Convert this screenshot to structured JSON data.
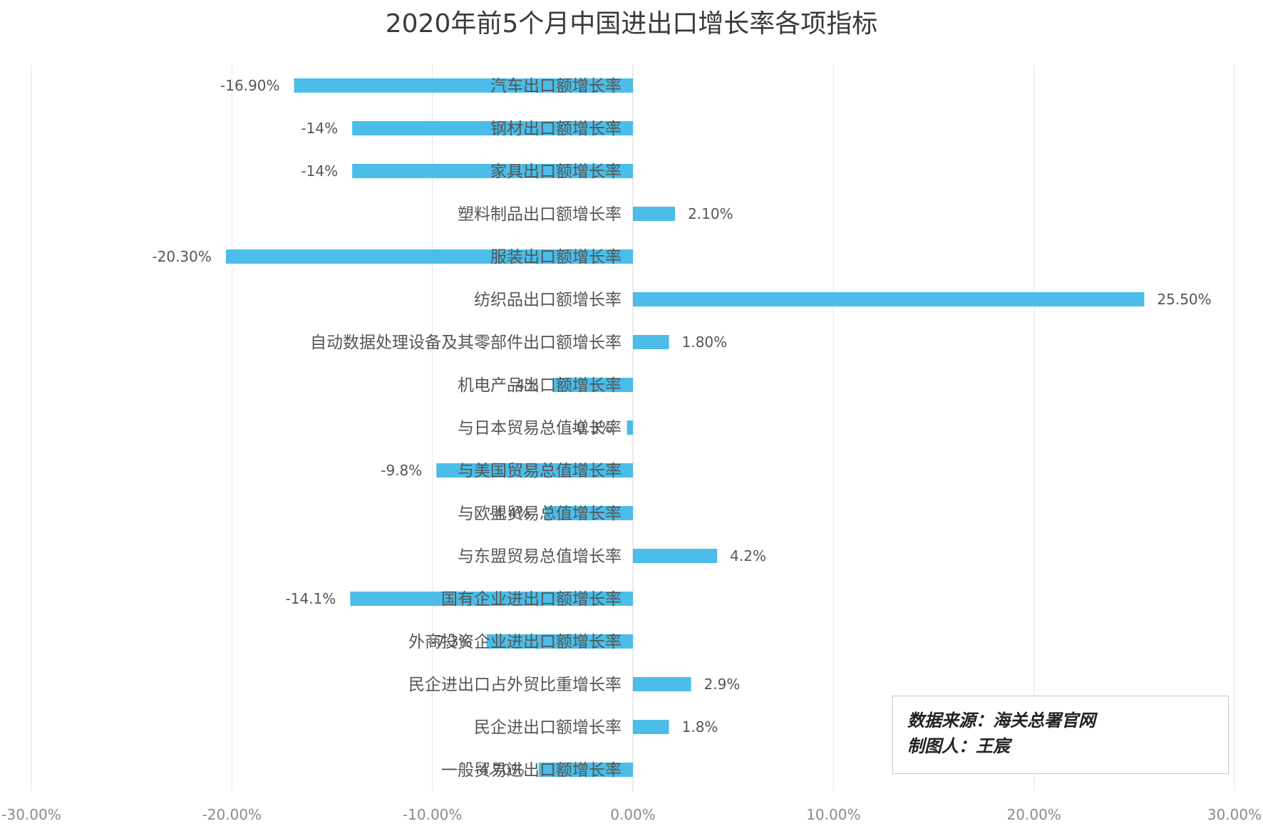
{
  "chart_data": {
    "type": "bar",
    "orientation": "horizontal",
    "title": "2020年前5个月中国进出口增长率各项指标",
    "xlim": [
      -30,
      30
    ],
    "x_ticks": [
      -30,
      -20,
      -10,
      0,
      10,
      20,
      30
    ],
    "x_tick_labels": [
      "-30.00%",
      "-20.00%",
      "-10.00%",
      "0.00%",
      "10.00%",
      "20.00%",
      "30.00%"
    ],
    "grid": "vertical",
    "bar_color": "#4bbde8",
    "categories": [
      "汽车出口额增长率",
      "钢材出口额增长率",
      "家具出口额增长率",
      "塑料制品出口额增长率",
      "服装出口额增长率",
      "纺织品出口额增长率",
      "自动数据处理设备及其零部件出口额增长率",
      "机电产品出口额增长率",
      "与日本贸易总值增长率",
      "与美国贸易总值增长率",
      "与欧盟贸易总值增长率",
      "与东盟贸易总值增长率",
      "国有企业进出口额增长率",
      "外商投资企业进出口额增长率",
      "民企进出口占外贸比重增长率",
      "民企进出口额增长率",
      "一般贸易进出口额增长率"
    ],
    "values": [
      -16.9,
      -14,
      -14,
      2.1,
      -20.3,
      25.5,
      1.8,
      -4,
      -0.3,
      -9.8,
      -4.4,
      4.2,
      -14.1,
      -7.3,
      2.9,
      1.8,
      -4.7
    ],
    "data_labels": [
      "-16.90%",
      "-14%",
      "-14%",
      "2.10%",
      "-20.30%",
      "25.50%",
      "1.80%",
      "-4%",
      "-0.3%",
      "-9.8%",
      "-4.4%",
      "4.2%",
      "-14.1%",
      "-7.3%",
      "2.9%",
      "1.8%",
      "-4.70%"
    ]
  },
  "source_box": {
    "line1": "数据来源：海关总署官网",
    "line2": "制图人：王宸"
  }
}
